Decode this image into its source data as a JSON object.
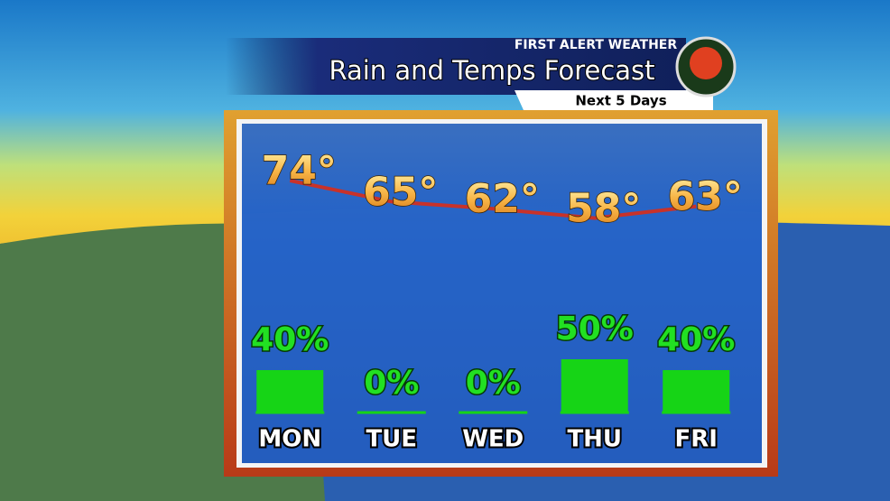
{
  "header": {
    "brand": "FIRST ALERT WEATHER",
    "title": "Rain and Temps Forecast",
    "subtitle": "Next 5 Days"
  },
  "chart_data": {
    "type": "combo",
    "categories": [
      "MON",
      "TUE",
      "WED",
      "THU",
      "FRI"
    ],
    "temperature": {
      "values": [
        74,
        65,
        62,
        58,
        63
      ],
      "value_labels": [
        "74°",
        "65°",
        "62°",
        "58°",
        "63°"
      ],
      "color": "#c8322a"
    },
    "rain_chance": {
      "values": [
        40,
        0,
        0,
        50,
        40
      ],
      "value_labels": [
        "40%",
        "0%",
        "0%",
        "50%",
        "40%"
      ],
      "color": "#16d416"
    }
  }
}
